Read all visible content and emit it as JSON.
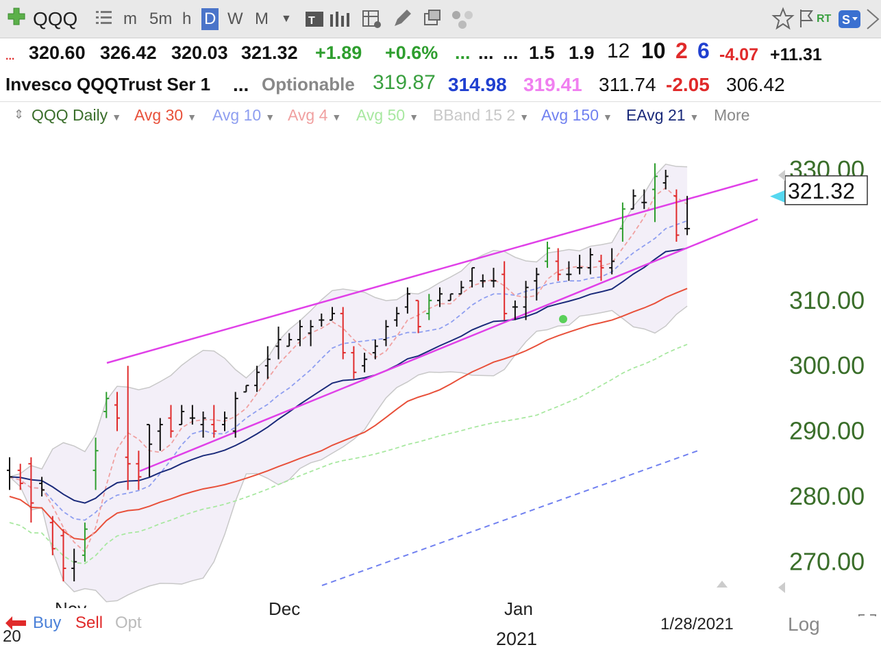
{
  "toolbar": {
    "symbol": "QQQ",
    "intervals": [
      "m",
      "5m",
      "h",
      "D",
      "W",
      "M"
    ],
    "selected_interval": "D",
    "rt_label": "RT"
  },
  "quote_row1": {
    "open": "320.60",
    "high": "326.42",
    "low": "320.03",
    "last": "321.32",
    "change": "+1.89",
    "change_pct": "+0.6%",
    "dots1": "...",
    "dots2": "...",
    "dots3": "...",
    "v1": "1.5",
    "v2": "1.9",
    "v3": "12",
    "v4": "10",
    "v5": "2",
    "v6": "6",
    "v7": "-4.07",
    "v8": "+11.31"
  },
  "quote_row2": {
    "name": "Invesco QQQTrust Ser 1",
    "dots": "...",
    "optionable": "Optionable",
    "n1": "319.87",
    "n2": "314.98",
    "n3": "319.41",
    "n4": "311.74",
    "n5": "-2.05",
    "n6": "306.42"
  },
  "studies": {
    "items": [
      "QQQ Daily",
      "Avg 30",
      "Avg 10",
      "Avg 4",
      "Avg 50",
      "BBand 15 2",
      "Avg 150",
      "EAvg 21"
    ],
    "more": "More"
  },
  "colors": {
    "up": "#2e9e2e",
    "down": "#e02a2a",
    "avg30": "#e8503a",
    "avg10": "#8e9ef0",
    "avg4": "#f0a0a0",
    "avg50": "#a8e8a0",
    "bband": "#c8c8c8",
    "avg150": "#7080f0",
    "eavg21": "#1a2a7a",
    "trendline": "#e040e8",
    "axis_label": "#3a6e2a"
  },
  "chart_data": {
    "type": "bar",
    "title": "QQQ Daily",
    "ylim": [
      266,
      333
    ],
    "y_ticks": [
      "330.00",
      "310.00",
      "300.00",
      "290.00",
      "280.00",
      "270.00"
    ],
    "last_price_label": "321.32",
    "x_labels": [
      "Nov",
      "Dec",
      "Jan",
      "2021",
      "1/28/2021"
    ],
    "series": [
      {
        "name": "QQQ Daily",
        "values": [
          {
            "h": 286,
            "l": 281,
            "o": 284,
            "c": 283
          },
          {
            "h": 285,
            "l": 281,
            "o": 284,
            "c": 282
          },
          {
            "h": 286,
            "l": 276,
            "o": 285,
            "c": 279
          },
          {
            "h": 283,
            "l": 280,
            "o": 282,
            "c": 281
          },
          {
            "h": 277,
            "l": 271,
            "o": 276,
            "c": 272
          },
          {
            "h": 275,
            "l": 267,
            "o": 274,
            "c": 269
          },
          {
            "h": 272,
            "l": 267,
            "o": 269,
            "c": 270
          },
          {
            "h": 276,
            "l": 270,
            "o": 271,
            "c": 275
          },
          {
            "h": 289,
            "l": 281,
            "o": 284,
            "c": 287
          },
          {
            "h": 296,
            "l": 292,
            "o": 293,
            "c": 295
          },
          {
            "h": 296,
            "l": 290,
            "o": 294,
            "c": 292
          },
          {
            "h": 300,
            "l": 281,
            "o": 286,
            "c": 285
          },
          {
            "h": 287,
            "l": 281,
            "o": 285,
            "c": 283
          },
          {
            "h": 291,
            "l": 283,
            "o": 291,
            "c": 288
          },
          {
            "h": 292,
            "l": 287,
            "o": 290,
            "c": 291
          },
          {
            "h": 294,
            "l": 289,
            "o": 292,
            "c": 290
          },
          {
            "h": 294,
            "l": 291,
            "o": 291,
            "c": 293
          },
          {
            "h": 294,
            "l": 291,
            "o": 292,
            "c": 292
          },
          {
            "h": 293,
            "l": 289,
            "o": 291,
            "c": 292
          },
          {
            "h": 294,
            "l": 289,
            "o": 291,
            "c": 290
          },
          {
            "h": 293,
            "l": 290,
            "o": 291,
            "c": 292
          },
          {
            "h": 296,
            "l": 289,
            "o": 290,
            "c": 295
          },
          {
            "h": 297,
            "l": 296,
            "o": 296,
            "c": 297
          },
          {
            "h": 300,
            "l": 296,
            "o": 297,
            "c": 299
          },
          {
            "h": 303,
            "l": 298,
            "o": 300,
            "c": 301
          },
          {
            "h": 306,
            "l": 301,
            "o": 303,
            "c": 304
          },
          {
            "h": 305,
            "l": 303,
            "o": 303,
            "c": 304
          },
          {
            "h": 307,
            "l": 303,
            "o": 304,
            "c": 306
          },
          {
            "h": 307,
            "l": 303,
            "o": 305,
            "c": 306
          },
          {
            "h": 308,
            "l": 306,
            "o": 307,
            "c": 307
          },
          {
            "h": 309,
            "l": 307,
            "o": 307,
            "c": 308
          },
          {
            "h": 309,
            "l": 301,
            "o": 308,
            "c": 302
          },
          {
            "h": 303,
            "l": 298,
            "o": 302,
            "c": 299
          },
          {
            "h": 302,
            "l": 299,
            "o": 300,
            "c": 301
          },
          {
            "h": 304,
            "l": 301,
            "o": 302,
            "c": 303
          },
          {
            "h": 307,
            "l": 303,
            "o": 304,
            "c": 306
          },
          {
            "h": 309,
            "l": 306,
            "o": 307,
            "c": 308
          },
          {
            "h": 312,
            "l": 308,
            "o": 309,
            "c": 311
          },
          {
            "h": 310,
            "l": 305,
            "o": 310,
            "c": 306
          },
          {
            "h": 311,
            "l": 307,
            "o": 308,
            "c": 310
          },
          {
            "h": 312,
            "l": 309,
            "o": 310,
            "c": 311
          },
          {
            "h": 311,
            "l": 310,
            "o": 310,
            "c": 311
          },
          {
            "h": 313,
            "l": 311,
            "o": 311,
            "c": 312
          },
          {
            "h": 315,
            "l": 312,
            "o": 313,
            "c": 315
          },
          {
            "h": 314,
            "l": 312,
            "o": 313,
            "c": 313
          },
          {
            "h": 315,
            "l": 312,
            "o": 313,
            "c": 313
          },
          {
            "h": 316,
            "l": 307,
            "o": 314,
            "c": 308
          },
          {
            "h": 310,
            "l": 307,
            "o": 309,
            "c": 309
          },
          {
            "h": 313,
            "l": 307,
            "o": 309,
            "c": 312
          },
          {
            "h": 315,
            "l": 310,
            "o": 313,
            "c": 314
          },
          {
            "h": 319,
            "l": 315,
            "o": 316,
            "c": 318
          },
          {
            "h": 318,
            "l": 313,
            "o": 316,
            "c": 314
          },
          {
            "h": 316,
            "l": 313,
            "o": 314,
            "c": 314
          },
          {
            "h": 317,
            "l": 314,
            "o": 315,
            "c": 315
          },
          {
            "h": 318,
            "l": 314,
            "o": 315,
            "c": 317
          },
          {
            "h": 317,
            "l": 313,
            "o": 316,
            "c": 315
          },
          {
            "h": 318,
            "l": 314,
            "o": 315,
            "c": 316
          },
          {
            "h": 325,
            "l": 319,
            "o": 321,
            "c": 324
          },
          {
            "h": 327,
            "l": 324,
            "o": 324,
            "c": 326
          },
          {
            "h": 327,
            "l": 324,
            "o": 325,
            "c": 325
          },
          {
            "h": 331,
            "l": 322,
            "o": 327,
            "c": 329
          },
          {
            "h": 330,
            "l": 327,
            "o": 328,
            "c": 329
          },
          {
            "h": 327,
            "l": 319,
            "o": 326,
            "c": 320
          },
          {
            "h": 326,
            "l": 320,
            "o": 321,
            "c": 321
          }
        ]
      }
    ]
  },
  "footer": {
    "buy": "Buy",
    "sell": "Sell",
    "opt": "Opt",
    "log": "Log",
    "nov": "Nov",
    "year_left": "20"
  }
}
